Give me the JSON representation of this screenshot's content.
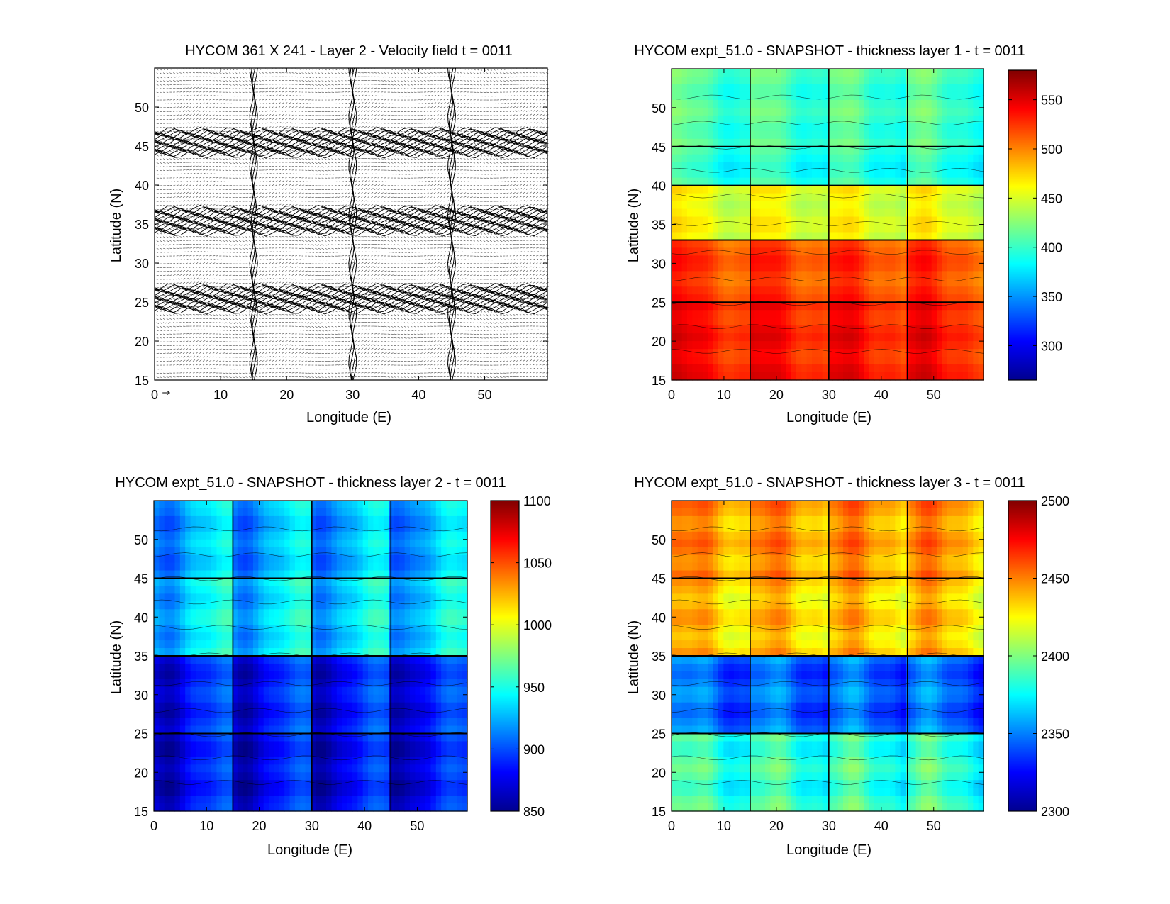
{
  "figure": {
    "panels_note": "",
    "arrow_label": "0"
  },
  "chart_data": [
    {
      "id": "velocity",
      "type": "quiver",
      "title": "HYCOM 361 X 241 - Layer 2 - Velocity field  t = 0011",
      "xlabel": "Longitude (E)",
      "ylabel": "Latitude (N)",
      "xlim": [
        0,
        59.5
      ],
      "ylim": [
        15,
        55
      ],
      "xticks": [
        0,
        10,
        20,
        30,
        40,
        50
      ],
      "yticks": [
        15,
        20,
        25,
        30,
        35,
        40,
        45,
        50
      ],
      "grid": false,
      "colors": {
        "arrows": "#000000",
        "background": "#ffffff"
      },
      "features": {
        "dense_zonal_jets_lat": [
          45.5,
          35.5,
          25.5
        ],
        "meridional_fronts_lon": [
          15,
          30,
          45
        ]
      }
    },
    {
      "id": "thickness1",
      "type": "heatmap",
      "title": "HYCOM expt_51.0 - SNAPSHOT - thickness layer 1 - t = 0011",
      "xlabel": "Longitude (E)",
      "ylabel": "Latitude (N)",
      "xlim": [
        0,
        59.5
      ],
      "ylim": [
        15,
        55
      ],
      "xticks": [
        0,
        10,
        20,
        30,
        40,
        50
      ],
      "yticks": [
        15,
        20,
        25,
        30,
        35,
        40,
        45,
        50
      ],
      "colorbar": {
        "min": 265,
        "max": 580,
        "ticks": [
          300,
          350,
          400,
          450,
          500,
          550
        ],
        "colormap": "jet"
      },
      "contour_lines": true,
      "field": {
        "bands": [
          [
            15,
            25,
            520
          ],
          [
            25,
            33,
            505
          ],
          [
            33,
            40,
            440
          ],
          [
            40,
            45,
            380
          ],
          [
            45,
            55,
            390
          ]
        ],
        "cells_lon": [
          0,
          15,
          30,
          45
        ],
        "cell_peak_offset": [
          2,
          4,
          30
        ]
      }
    },
    {
      "id": "thickness2",
      "type": "heatmap",
      "title": "HYCOM expt_51.0 - SNAPSHOT - thickness layer 2 - t = 0011",
      "xlabel": "Longitude (E)",
      "ylabel": "Latitude (N)",
      "xlim": [
        0,
        59.5
      ],
      "ylim": [
        15,
        55
      ],
      "xticks": [
        0,
        10,
        20,
        30,
        40,
        50
      ],
      "yticks": [
        15,
        20,
        25,
        30,
        35,
        40,
        45,
        50
      ],
      "colorbar": {
        "min": 850,
        "max": 1100,
        "ticks": [
          850,
          900,
          950,
          1000,
          1050,
          1100
        ],
        "colormap": "jet"
      },
      "contour_lines": true,
      "field": {
        "bands": [
          [
            15,
            25,
            900
          ],
          [
            25,
            35,
            905
          ],
          [
            35,
            45,
            955
          ],
          [
            45,
            55,
            945
          ]
        ],
        "cells_lon": [
          0,
          15,
          30,
          45
        ],
        "cell_peak_offset": [
          2,
          4,
          -40
        ]
      }
    },
    {
      "id": "thickness3",
      "type": "heatmap",
      "title": "HYCOM expt_51.0 - SNAPSHOT - thickness layer 3 - t = 0011",
      "xlabel": "Longitude (E)",
      "ylabel": "Latitude (N)",
      "xlim": [
        0,
        59.5
      ],
      "ylim": [
        15,
        55
      ],
      "xticks": [
        0,
        10,
        20,
        30,
        40,
        50
      ],
      "yticks": [
        15,
        20,
        25,
        30,
        35,
        40,
        45,
        50
      ],
      "colorbar": {
        "min": 2300,
        "max": 2500,
        "ticks": [
          2300,
          2350,
          2400,
          2450,
          2500
        ],
        "colormap": "jet"
      },
      "contour_lines": true,
      "field": {
        "bands": [
          [
            15,
            25,
            2370
          ],
          [
            25,
            35,
            2330
          ],
          [
            35,
            45,
            2420
          ],
          [
            45,
            55,
            2430
          ]
        ],
        "cells_lon": [
          0,
          15,
          30,
          45
        ],
        "cell_peak_offset": [
          4,
          6,
          25
        ]
      }
    }
  ]
}
